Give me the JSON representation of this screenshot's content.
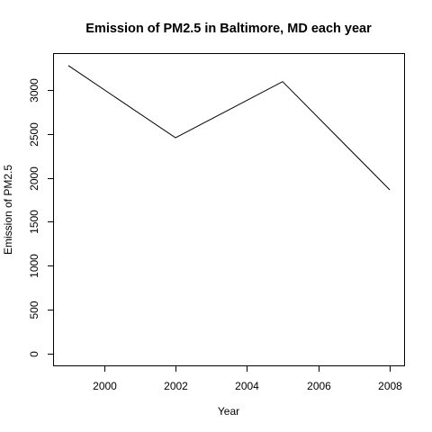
{
  "chart_data": {
    "type": "line",
    "title": "Emission of PM2.5 in Baltimore, MD each year",
    "xlabel": "Year",
    "ylabel": "Emission of PM2.5",
    "x": [
      1999,
      2002,
      2005,
      2008
    ],
    "series": [
      {
        "values": [
          3274,
          2454,
          3091,
          1862
        ],
        "color": "#000000"
      }
    ],
    "xlim": [
      1998.6,
      2008.4
    ],
    "ylim": [
      -130,
      3405
    ],
    "x_ticks": [
      2000,
      2002,
      2004,
      2006,
      2008
    ],
    "y_ticks": [
      0,
      500,
      1000,
      1500,
      2000,
      2500,
      3000
    ],
    "x_tick_labels": [
      "2000",
      "2002",
      "2004",
      "2006",
      "2008"
    ],
    "y_tick_labels": [
      "0",
      "500",
      "1000",
      "1500",
      "2000",
      "2500",
      "3000"
    ],
    "grid": false,
    "legend": "none"
  }
}
